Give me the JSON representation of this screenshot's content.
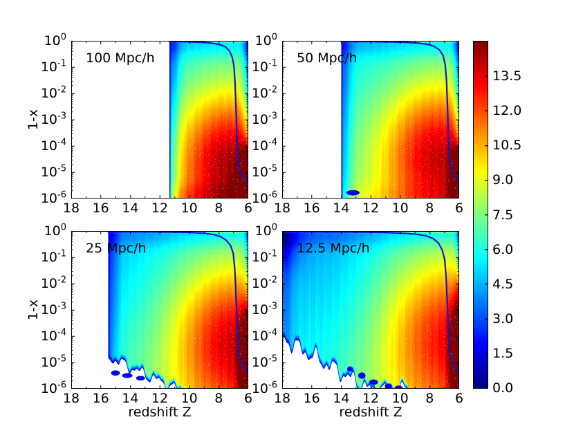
{
  "figure": {
    "xlabel": "redshift Z",
    "ylabel": "1-x"
  },
  "chart_data": {
    "type": "heatmap",
    "colormap": "jet",
    "vmin": 0.0,
    "vmax": 15.0,
    "curve_color": "#1616c8",
    "x_axis": {
      "label": "redshift Z",
      "min": 6,
      "max": 18,
      "reversed": true,
      "major_ticks": [
        18,
        16,
        14,
        12,
        10,
        8,
        6
      ],
      "minor_ticks": [
        17,
        15,
        13,
        11,
        9,
        7
      ]
    },
    "y_axis": {
      "label": "1-x",
      "scale": "log10",
      "tick_exponents": [
        0,
        -1,
        -2,
        -3,
        -4,
        -5,
        -6
      ]
    },
    "colorbar": {
      "tick_values": [
        13.5,
        12.0,
        10.5,
        9.0,
        7.5,
        6.0,
        4.5,
        3.0,
        1.5,
        0.0
      ],
      "tick_labels": [
        "13.5",
        "12.0",
        "10.5",
        "9.0",
        "7.5",
        "6.0",
        "4.5",
        "3.0",
        "1.5",
        "0.0"
      ]
    },
    "panels": [
      {
        "label": "100 Mpc/h",
        "z_start": 11.35,
        "mean_history_curve": [
          [
            11.35,
            -0.03
          ],
          [
            10.5,
            -0.035
          ],
          [
            9.5,
            -0.05
          ],
          [
            8.8,
            -0.07
          ],
          [
            8.3,
            -0.1
          ],
          [
            7.9,
            -0.15
          ],
          [
            7.55,
            -0.23
          ],
          [
            7.3,
            -0.37
          ],
          [
            7.1,
            -0.6
          ],
          [
            6.97,
            -0.95
          ],
          [
            6.9,
            -1.55
          ],
          [
            6.84,
            -2.45
          ],
          [
            6.79,
            -3.35
          ],
          [
            6.74,
            -4.15
          ],
          [
            6.68,
            -4.65
          ],
          [
            6.58,
            -4.95
          ],
          [
            6.42,
            -5.12
          ],
          [
            6.2,
            -5.3
          ],
          [
            6.0,
            -5.45
          ]
        ],
        "field": {
          "blob": {
            "z": 7.5,
            "ly": -4.5,
            "a": 6.2,
            "sz": 2.4,
            "sy": 1.9
          },
          "corner": {
            "z": 6.05,
            "ly": -5.6,
            "a": 7.0,
            "sz": 0.45,
            "sy": 1.0
          },
          "left_edge": {
            "amp": 1,
            "soft": 2.4
          },
          "right_cool": {
            "a": 3.2,
            "w": 0.33,
            "ly_above": -4.0
          },
          "bottom_boost": 1.4,
          "top_left_cool": 0,
          "global_cool": 0,
          "cutoff": null,
          "artifacts": []
        }
      },
      {
        "label": "50 Mpc/h",
        "z_start": 14.0,
        "mean_history_curve": [
          [
            14.0,
            -0.03
          ],
          [
            12.0,
            -0.035
          ],
          [
            10.5,
            -0.045
          ],
          [
            9.5,
            -0.06
          ],
          [
            8.7,
            -0.09
          ],
          [
            8.1,
            -0.14
          ],
          [
            7.7,
            -0.21
          ],
          [
            7.35,
            -0.34
          ],
          [
            7.1,
            -0.55
          ],
          [
            6.95,
            -0.9
          ],
          [
            6.86,
            -1.5
          ],
          [
            6.8,
            -2.4
          ],
          [
            6.75,
            -3.3
          ],
          [
            6.7,
            -4.1
          ],
          [
            6.64,
            -4.6
          ],
          [
            6.53,
            -4.9
          ],
          [
            6.35,
            -5.1
          ],
          [
            6.15,
            -5.27
          ],
          [
            6.0,
            -5.4
          ]
        ],
        "field": {
          "blob": {
            "z": 7.6,
            "ly": -4.2,
            "a": 5.9,
            "sz": 2.6,
            "sy": 1.9
          },
          "corner": {
            "z": 6.05,
            "ly": -5.55,
            "a": 7.0,
            "sz": 0.4,
            "sy": 1.1
          },
          "left_edge": {
            "amp": 1,
            "soft": 2.2
          },
          "right_cool": {
            "a": 3.6,
            "w": 0.33,
            "ly_above": -4.2
          },
          "bottom_boost": 0.7,
          "top_left_cool": 0,
          "global_cool": 0,
          "cutoff": null,
          "artifacts": [
            {
              "z": 13.2,
              "ly": -5.78,
              "rz": 0.45,
              "rly": 0.1
            }
          ]
        }
      },
      {
        "label": "25 Mpc/h",
        "z_start": 15.5,
        "mean_history_curve": [
          [
            15.5,
            -0.03
          ],
          [
            13.0,
            -0.035
          ],
          [
            11.0,
            -0.045
          ],
          [
            9.8,
            -0.06
          ],
          [
            8.9,
            -0.09
          ],
          [
            8.3,
            -0.14
          ],
          [
            7.85,
            -0.22
          ],
          [
            7.5,
            -0.35
          ],
          [
            7.2,
            -0.55
          ],
          [
            7.02,
            -0.85
          ],
          [
            6.92,
            -1.4
          ],
          [
            6.85,
            -2.2
          ],
          [
            6.79,
            -3.1
          ],
          [
            6.74,
            -3.95
          ],
          [
            6.68,
            -4.5
          ],
          [
            6.58,
            -4.85
          ],
          [
            6.42,
            -5.05
          ],
          [
            6.22,
            -5.22
          ],
          [
            6.0,
            -5.38
          ]
        ],
        "field": {
          "blob": {
            "z": 7.25,
            "ly": -4.0,
            "a": 5.7,
            "sz": 2.6,
            "sy": 2.0
          },
          "corner": {
            "z": 6.05,
            "ly": -5.3,
            "a": 7.0,
            "sz": 0.4,
            "sy": 1.5
          },
          "left_edge": {
            "amp": 1,
            "soft": 2.0
          },
          "right_cool": {
            "a": 2.2,
            "w": 0.26,
            "ly_above": -2.6
          },
          "bottom_boost": 0,
          "top_left_cool": 0,
          "global_cool": 0.6,
          "cutoff": {
            "zh": 15.5,
            "lyh": -4.8,
            "zl": 10.6,
            "lyl": -6.1,
            "amp": 0.18,
            "tail_z": 10.0,
            "tail_ly": -6.05
          },
          "artifacts": [
            {
              "z": 15.0,
              "ly": -5.4,
              "rz": 0.3,
              "rly": 0.1
            },
            {
              "z": 14.2,
              "ly": -5.5,
              "rz": 0.35,
              "rly": 0.09
            },
            {
              "z": 13.3,
              "ly": -5.6,
              "rz": 0.3,
              "rly": 0.09
            }
          ]
        }
      },
      {
        "label": "12.5 Mpc/h",
        "z_start": 18.0,
        "mean_history_curve": [
          [
            18.0,
            -0.03
          ],
          [
            15.0,
            -0.035
          ],
          [
            12.5,
            -0.045
          ],
          [
            10.8,
            -0.06
          ],
          [
            9.6,
            -0.09
          ],
          [
            8.8,
            -0.13
          ],
          [
            8.2,
            -0.19
          ],
          [
            7.75,
            -0.29
          ],
          [
            7.4,
            -0.46
          ],
          [
            7.15,
            -0.72
          ],
          [
            6.98,
            -1.1
          ],
          [
            6.88,
            -1.8
          ],
          [
            6.81,
            -2.7
          ],
          [
            6.75,
            -3.6
          ],
          [
            6.69,
            -4.3
          ],
          [
            6.61,
            -4.75
          ],
          [
            6.48,
            -5.0
          ],
          [
            6.3,
            -5.17
          ],
          [
            6.1,
            -5.32
          ],
          [
            6.0,
            -5.4
          ]
        ],
        "field": {
          "blob": {
            "z": 7.0,
            "ly": -3.8,
            "a": 5.1,
            "sz": 2.7,
            "sy": 2.1
          },
          "corner": {
            "z": 6.05,
            "ly": -5.1,
            "a": 7.5,
            "sz": 0.4,
            "sy": 1.7
          },
          "left_edge": {
            "amp": 0,
            "soft": 1.2
          },
          "right_cool": {
            "a": 2.5,
            "w": 0.28,
            "ly_above": -1.6
          },
          "bottom_boost": 0,
          "top_left_cool": 2.0,
          "global_cool": 0.9,
          "cutoff": {
            "zh": 18.1,
            "lyh": -4.05,
            "zl": 11.9,
            "lyl": -6.1,
            "amp": 0.26,
            "tail_z": 9.5,
            "tail_ly": -6.0
          },
          "artifacts": [
            {
              "z": 13.4,
              "ly": -5.25,
              "rz": 0.2,
              "rly": 0.1
            },
            {
              "z": 12.6,
              "ly": -5.5,
              "rz": 0.25,
              "rly": 0.12
            },
            {
              "z": 11.8,
              "ly": -5.75,
              "rz": 0.3,
              "rly": 0.1
            },
            {
              "z": 10.8,
              "ly": -5.9,
              "rz": 0.25,
              "rly": 0.1
            },
            {
              "z": 10.1,
              "ly": -6.0,
              "rz": 0.3,
              "rly": 0.12
            }
          ]
        }
      }
    ]
  }
}
